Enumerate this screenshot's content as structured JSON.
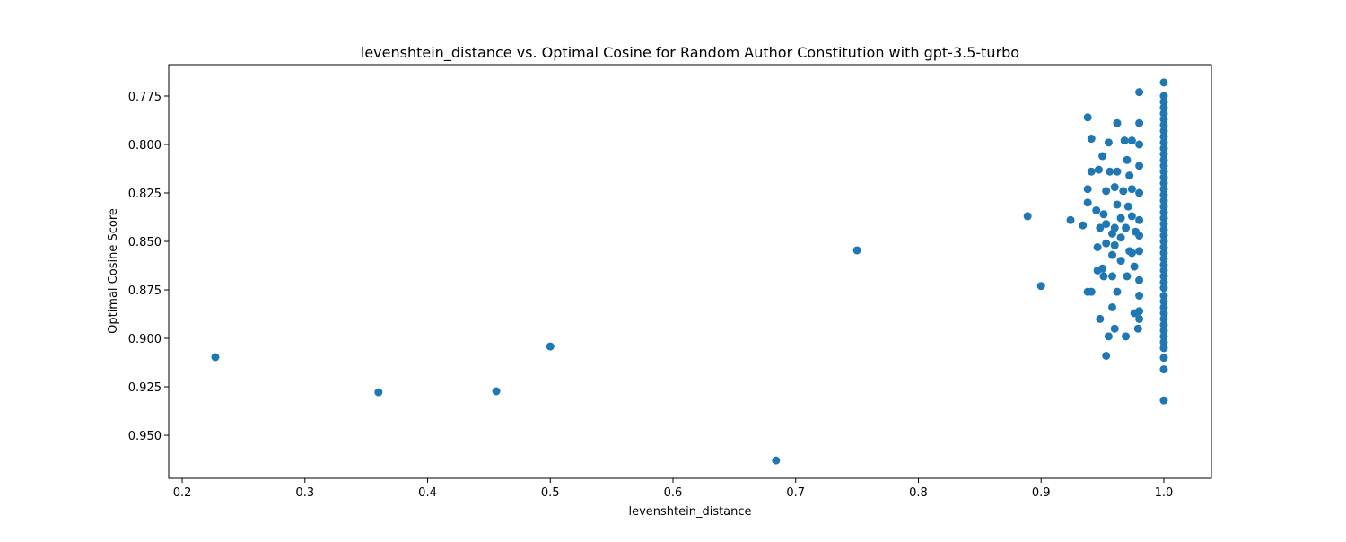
{
  "chart_data": {
    "type": "scatter",
    "title": "levenshtein_distance vs. Optimal Cosine for Random Author Constitution with gpt-3.5-turbo",
    "x_label": "levenshtein_distance",
    "y_label": "Optimal Cosine Score",
    "color": "#1f77b4",
    "xlim": [
      0.189,
      1.0388
    ],
    "ylim": [
      0.9722,
      0.7588
    ],
    "y_inverted": true,
    "xticks": [
      0.2,
      0.3,
      0.4,
      0.5,
      0.6,
      0.7,
      0.8,
      0.9,
      {
        "value": 1.0,
        "label": "1.0"
      }
    ],
    "yticks": [
      0.775,
      {
        "value": 0.8,
        "label": "0.800"
      },
      0.825,
      {
        "value": 0.85,
        "label": "0.850"
      },
      0.875,
      {
        "value": 0.9,
        "label": "0.900"
      },
      0.925,
      {
        "value": 0.95,
        "label": "0.950"
      }
    ],
    "x": [
      0.227,
      0.36,
      0.456,
      0.5,
      0.684,
      0.75,
      0.889,
      0.9,
      0.924,
      0.934,
      0.938,
      0.941,
      0.962,
      0.98,
      0.955,
      0.968,
      0.974,
      0.98,
      0.95,
      0.97,
      0.941,
      0.947,
      0.956,
      0.962,
      0.972,
      0.98,
      0.938,
      0.953,
      0.96,
      0.967,
      0.974,
      0.98,
      0.938,
      0.962,
      0.971,
      0.945,
      0.951,
      0.965,
      0.974,
      0.98,
      0.953,
      0.948,
      0.96,
      0.969,
      0.977,
      0.958,
      0.965,
      0.98,
      0.953,
      0.96,
      0.946,
      0.972,
      0.98,
      0.958,
      0.965,
      0.974,
      0.946,
      0.95,
      0.958,
      0.951,
      0.97,
      0.976,
      0.98,
      0.938,
      0.941,
      0.962,
      0.98,
      0.958,
      0.976,
      0.98,
      0.948,
      0.98,
      0.96,
      0.979,
      0.955,
      0.969,
      0.953,
      0.98,
      1.0,
      1.0,
      1.0,
      1.0,
      1.0,
      1.0,
      1.0,
      1.0,
      1.0,
      1.0,
      1.0,
      1.0,
      1.0,
      1.0,
      1.0,
      1.0,
      1.0,
      1.0,
      1.0,
      1.0,
      1.0,
      1.0,
      1.0,
      1.0,
      1.0,
      1.0,
      1.0,
      1.0,
      1.0,
      1.0,
      1.0,
      1.0,
      1.0,
      1.0,
      1.0,
      1.0,
      1.0,
      1.0,
      1.0,
      1.0,
      1.0,
      1.0,
      1.0,
      1.0,
      1.0,
      1.0,
      1.0,
      1.0
    ],
    "values": [
      0.9097,
      0.9278,
      0.9273,
      0.9042,
      0.963,
      0.8546,
      0.837,
      0.873,
      0.839,
      0.8417,
      0.786,
      0.797,
      0.789,
      0.789,
      0.799,
      0.798,
      0.798,
      0.8,
      0.806,
      0.808,
      0.814,
      0.813,
      0.814,
      0.814,
      0.816,
      0.811,
      0.823,
      0.824,
      0.822,
      0.824,
      0.823,
      0.825,
      0.83,
      0.831,
      0.832,
      0.834,
      0.836,
      0.838,
      0.837,
      0.839,
      0.841,
      0.843,
      0.843,
      0.843,
      0.845,
      0.846,
      0.848,
      0.847,
      0.851,
      0.852,
      0.853,
      0.855,
      0.855,
      0.857,
      0.86,
      0.856,
      0.865,
      0.864,
      0.868,
      0.868,
      0.868,
      0.863,
      0.87,
      0.876,
      0.876,
      0.876,
      0.878,
      0.884,
      0.887,
      0.886,
      0.89,
      0.89,
      0.895,
      0.895,
      0.899,
      0.899,
      0.909,
      0.773,
      0.768,
      0.775,
      0.778,
      0.781,
      0.784,
      0.787,
      0.79,
      0.793,
      0.796,
      0.799,
      0.802,
      0.805,
      0.808,
      0.811,
      0.814,
      0.817,
      0.82,
      0.823,
      0.826,
      0.829,
      0.832,
      0.835,
      0.838,
      0.841,
      0.844,
      0.847,
      0.85,
      0.853,
      0.856,
      0.859,
      0.862,
      0.865,
      0.868,
      0.871,
      0.874,
      0.878,
      0.881,
      0.884,
      0.887,
      0.89,
      0.893,
      0.896,
      0.899,
      0.902,
      0.905,
      0.91,
      0.916,
      0.932
    ]
  }
}
